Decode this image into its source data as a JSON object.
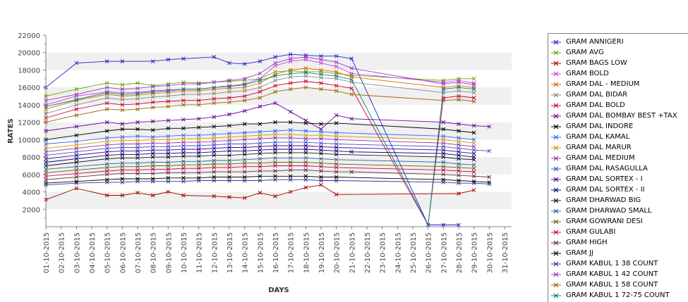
{
  "chart_data": {
    "type": "line",
    "title": "",
    "xlabel": "DAYS",
    "ylabel": "RATES",
    "ylim": [
      0,
      22000
    ],
    "yticks": [
      "2000",
      "4000",
      "6000",
      "8000",
      "10000",
      "12000",
      "14000",
      "16000",
      "18000",
      "20000",
      "22000"
    ],
    "grid": "alternating horizontal bands",
    "legend_placement": "right",
    "categories": [
      "01-10-2015",
      "02-10-2015",
      "03-10-2015",
      "04-10-2015",
      "05-10-2015",
      "06-10-2015",
      "07-10-2015",
      "08-10-2015",
      "09-10-2015",
      "10-10-2015",
      "11-10-2015",
      "12-10-2015",
      "13-10-2015",
      "14-10-2015",
      "15-10-2015",
      "16-10-2015",
      "17-10-2015",
      "18-10-2015",
      "19-10-2015",
      "20-10-2015",
      "21-10-2015",
      "22-10-2015",
      "23-10-2015",
      "24-10-2015",
      "25-10-2015",
      "26-10-2015",
      "27-10-2015",
      "28-10-2015",
      "29-10-2015",
      "30-10-2015",
      "31-10-2015"
    ],
    "series": [
      {
        "name": "GRAM ANNIGERI",
        "color": "#2222cc",
        "values": [
          16000,
          null,
          18800,
          null,
          19000,
          19000,
          null,
          19000,
          19200,
          19300,
          null,
          19500,
          18800,
          18700,
          19000,
          19500,
          19800,
          19700,
          19600,
          19600,
          19300,
          null,
          null,
          null,
          null,
          200,
          200,
          200,
          null,
          null,
          null
        ]
      },
      {
        "name": "GRAM AVG",
        "color": "#66aa00",
        "values": [
          15000,
          null,
          15800,
          null,
          16500,
          16300,
          16500,
          16200,
          16400,
          16600,
          16500,
          16600,
          16700,
          16800,
          17000,
          17800,
          17900,
          17800,
          17800,
          17600,
          17400,
          null,
          null,
          null,
          null,
          null,
          16800,
          17000,
          17000,
          null,
          null
        ]
      },
      {
        "name": "GRAM BAGS LOW",
        "color": "#aa0000",
        "values": [
          3100,
          null,
          4400,
          null,
          3600,
          3600,
          3900,
          3600,
          4000,
          3600,
          null,
          3500,
          3400,
          3300,
          3900,
          3500,
          4000,
          4500,
          4800,
          3700,
          null,
          null,
          null,
          null,
          null,
          null,
          null,
          3800,
          4200,
          null,
          null
        ]
      },
      {
        "name": "GRAM BOLD",
        "color": "#cc44cc",
        "values": [
          14000,
          null,
          15000,
          null,
          15500,
          15400,
          15400,
          15600,
          15700,
          15800,
          15800,
          16000,
          16200,
          16400,
          17000,
          18500,
          19000,
          19200,
          18800,
          18400,
          17600,
          null,
          null,
          null,
          null,
          null,
          16600,
          16800,
          16500,
          null,
          null
        ]
      },
      {
        "name": "GRAM DAL - MEDIUM",
        "color": "#dd6600",
        "values": [
          13500,
          null,
          14500,
          null,
          15200,
          15000,
          15100,
          15300,
          15400,
          15600,
          15600,
          15800,
          15900,
          16000,
          16500,
          17500,
          18000,
          18200,
          18000,
          17800,
          17200,
          null,
          null,
          null,
          null,
          null,
          16000,
          16200,
          16000,
          null,
          null
        ]
      },
      {
        "name": "GRAM DAL BIDAR",
        "color": "#888888",
        "values": [
          13000,
          null,
          14000,
          null,
          14800,
          14600,
          14700,
          14900,
          15000,
          15200,
          15200,
          15300,
          15500,
          15600,
          16000,
          16800,
          17200,
          17300,
          17100,
          17000,
          16600,
          null,
          null,
          null,
          null,
          null,
          15400,
          15600,
          15400,
          null,
          null
        ]
      },
      {
        "name": "GRAM DAL BOLD",
        "color": "#cc0033",
        "values": [
          12500,
          null,
          13500,
          null,
          14200,
          14000,
          14100,
          14300,
          14400,
          14500,
          14500,
          14700,
          14800,
          15000,
          15500,
          16200,
          16500,
          16700,
          16500,
          16200,
          15900,
          null,
          null,
          null,
          null,
          200,
          14800,
          15000,
          14800,
          null,
          null
        ]
      },
      {
        "name": "GRAM DAL BOMBAY BEST +TAX",
        "color": "#660099",
        "values": [
          11000,
          null,
          11500,
          null,
          12000,
          11800,
          12000,
          12100,
          12200,
          12300,
          12400,
          12600,
          12900,
          13300,
          13800,
          14200,
          13200,
          12200,
          11200,
          12800,
          12400,
          null,
          null,
          null,
          null,
          null,
          12000,
          11800,
          11600,
          11500,
          null
        ]
      },
      {
        "name": "GRAM DAL INDORE",
        "color": "#000000",
        "values": [
          10000,
          null,
          10500,
          null,
          11000,
          11200,
          11200,
          11100,
          11300,
          11300,
          11400,
          11500,
          11600,
          11800,
          11800,
          12000,
          12000,
          11900,
          11800,
          11900,
          null,
          null,
          null,
          null,
          null,
          null,
          11200,
          11000,
          10800,
          null,
          null
        ]
      },
      {
        "name": "GRAM DAL KAMAL",
        "color": "#3366ff",
        "values": [
          9500,
          null,
          9800,
          null,
          10200,
          10300,
          10400,
          10300,
          10400,
          10500,
          10500,
          10600,
          10700,
          10800,
          10900,
          11000,
          11100,
          11000,
          10900,
          10800,
          null,
          null,
          null,
          null,
          null,
          null,
          10400,
          10200,
          10000,
          null,
          null
        ]
      },
      {
        "name": "GRAM DAL MARUR",
        "color": "#cc9900",
        "values": [
          9000,
          null,
          9400,
          null,
          9800,
          9900,
          9900,
          10000,
          10000,
          10100,
          10100,
          10200,
          10300,
          10400,
          10500,
          10600,
          10600,
          10500,
          10500,
          10400,
          null,
          null,
          null,
          null,
          null,
          null,
          10000,
          9800,
          9600,
          null,
          null
        ]
      },
      {
        "name": "GRAM DAL MEDIUM",
        "color": "#993399",
        "values": [
          8600,
          null,
          9000,
          null,
          9400,
          9500,
          9500,
          9600,
          9600,
          9700,
          9700,
          9800,
          9900,
          10000,
          10100,
          10200,
          10200,
          10100,
          10100,
          10000,
          null,
          null,
          null,
          null,
          null,
          null,
          9600,
          9400,
          9200,
          null,
          null
        ]
      },
      {
        "name": "GRAM DAL RASAGULLA",
        "color": "#3355cc",
        "values": [
          8200,
          null,
          8600,
          null,
          9000,
          9100,
          9100,
          9200,
          9200,
          9300,
          9300,
          9400,
          9500,
          9500,
          9600,
          9700,
          9700,
          9700,
          9600,
          9500,
          null,
          null,
          null,
          null,
          null,
          null,
          9200,
          9000,
          8800,
          8700,
          null
        ]
      },
      {
        "name": "GRAM DAL SORTEX - I",
        "color": "#440088",
        "values": [
          7800,
          null,
          8200,
          null,
          8600,
          8700,
          8700,
          8800,
          8800,
          8900,
          8900,
          9000,
          9100,
          9100,
          9200,
          9300,
          9300,
          9300,
          9200,
          9100,
          null,
          null,
          null,
          null,
          null,
          null,
          8800,
          8600,
          8400,
          null,
          null
        ]
      },
      {
        "name": "GRAM DAL SORTEX - II",
        "color": "#000088",
        "values": [
          7400,
          null,
          7800,
          null,
          8200,
          8300,
          8300,
          8400,
          8400,
          8500,
          8500,
          8600,
          8700,
          8700,
          8800,
          8900,
          8900,
          8900,
          8800,
          8700,
          8600,
          null,
          null,
          null,
          null,
          null,
          8400,
          8200,
          8000,
          null,
          null
        ]
      },
      {
        "name": "GRAM DHARWAD BIG",
        "color": "#111111",
        "values": [
          7000,
          null,
          7400,
          null,
          7800,
          7900,
          7900,
          8000,
          8000,
          8100,
          8100,
          8200,
          8200,
          8300,
          8400,
          8500,
          8500,
          8500,
          8400,
          8300,
          null,
          null,
          null,
          null,
          null,
          null,
          8000,
          7800,
          7700,
          null,
          null
        ]
      },
      {
        "name": "GRAM DHARWAD SMALL",
        "color": "#336699",
        "values": [
          6600,
          null,
          6900,
          null,
          7200,
          7300,
          7300,
          7400,
          7400,
          7500,
          7500,
          7600,
          7600,
          7700,
          7800,
          7900,
          7900,
          7900,
          7800,
          7700,
          null,
          null,
          null,
          null,
          null,
          null,
          7400,
          7200,
          7100,
          null,
          null
        ]
      },
      {
        "name": "GRAM GOWRANI DESI",
        "color": "#666600",
        "values": [
          6200,
          null,
          6500,
          null,
          6800,
          6900,
          6900,
          7000,
          7000,
          7100,
          7100,
          7200,
          7200,
          7300,
          7300,
          7400,
          7400,
          7400,
          7300,
          7200,
          null,
          null,
          null,
          null,
          null,
          null,
          6900,
          6800,
          6700,
          null,
          null
        ]
      },
      {
        "name": "GRAM GULABI",
        "color": "#cc0055",
        "values": [
          5800,
          null,
          6100,
          null,
          6400,
          6500,
          6500,
          6600,
          6600,
          6700,
          6700,
          6800,
          6800,
          6900,
          6900,
          7000,
          7000,
          7000,
          6900,
          6800,
          null,
          null,
          null,
          null,
          null,
          null,
          6500,
          6400,
          6300,
          null,
          null
        ]
      },
      {
        "name": "GRAM HIGH",
        "color": "#663333",
        "values": [
          5400,
          null,
          5700,
          null,
          6000,
          6100,
          6100,
          6100,
          6200,
          6200,
          6200,
          6300,
          6300,
          6300,
          6400,
          6400,
          6500,
          6500,
          6400,
          6300,
          6300,
          null,
          null,
          null,
          null,
          null,
          6000,
          5900,
          5800,
          5700,
          null
        ]
      },
      {
        "name": "GRAM JJ",
        "color": "#000000",
        "values": [
          5000,
          null,
          5200,
          null,
          5400,
          5500,
          5500,
          5500,
          5600,
          5600,
          5600,
          5700,
          5700,
          5700,
          5800,
          5800,
          5800,
          5800,
          5700,
          5700,
          null,
          null,
          null,
          null,
          null,
          null,
          5400,
          5300,
          5200,
          5100,
          null
        ]
      },
      {
        "name": "GRAM KABUL 1 38 COUNT",
        "color": "#333399",
        "values": [
          4800,
          null,
          5000,
          null,
          5100,
          5100,
          5200,
          5200,
          5200,
          5200,
          5300,
          5300,
          5300,
          5300,
          5300,
          5400,
          5400,
          5400,
          5300,
          5300,
          null,
          null,
          null,
          null,
          null,
          null,
          5100,
          5000,
          5000,
          4900,
          null
        ]
      },
      {
        "name": "GRAM KABUL 1 42 COUNT",
        "color": "#9933cc",
        "values": [
          14500,
          null,
          15200,
          null,
          16000,
          15800,
          15900,
          16100,
          16200,
          16400,
          16400,
          16600,
          16800,
          17000,
          17600,
          18800,
          19300,
          19500,
          19200,
          18900,
          18200,
          null,
          null,
          null,
          null,
          null,
          16400,
          16600,
          16300,
          null,
          null
        ]
      },
      {
        "name": "GRAM KABUL 1 58 COUNT",
        "color": "#996600",
        "values": [
          12000,
          null,
          12800,
          null,
          13500,
          13400,
          13500,
          13700,
          13800,
          14000,
          14000,
          14200,
          14300,
          14500,
          14800,
          15500,
          15800,
          16000,
          15800,
          15600,
          15200,
          null,
          null,
          null,
          null,
          null,
          14500,
          14600,
          14400,
          null,
          null
        ]
      },
      {
        "name": "GRAM KABUL 1 72-75 COUNT",
        "color": "#008080",
        "values": [
          13800,
          null,
          14600,
          null,
          15400,
          15200,
          15300,
          15500,
          15600,
          15800,
          15800,
          16000,
          16100,
          16300,
          16800,
          17300,
          17600,
          17700,
          17500,
          17300,
          16900,
          null,
          null,
          null,
          null,
          200,
          15800,
          16000,
          15800,
          null,
          null
        ]
      }
    ]
  },
  "legend_labels": [
    "GRAM ANNIGERI",
    "GRAM AVG",
    "GRAM BAGS LOW",
    "GRAM BOLD",
    "GRAM DAL - MEDIUM",
    "GRAM DAL BIDAR",
    "GRAM DAL BOLD",
    "GRAM DAL BOMBAY BEST +TAX",
    "GRAM DAL INDORE",
    "GRAM DAL KAMAL",
    "GRAM DAL MARUR",
    "GRAM DAL MEDIUM",
    "GRAM DAL RASAGULLA",
    "GRAM DAL SORTEX - I",
    "GRAM DAL SORTEX - II",
    "GRAM DHARWAD BIG",
    "GRAM DHARWAD SMALL",
    "GRAM GOWRANI DESI",
    "GRAM GULABI",
    "GRAM HIGH",
    "GRAM JJ",
    "GRAM KABUL 1 38 COUNT",
    "GRAM KABUL 1 42 COUNT",
    "GRAM KABUL 1 58 COUNT",
    "GRAM KABUL 1 72-75 COUNT"
  ]
}
